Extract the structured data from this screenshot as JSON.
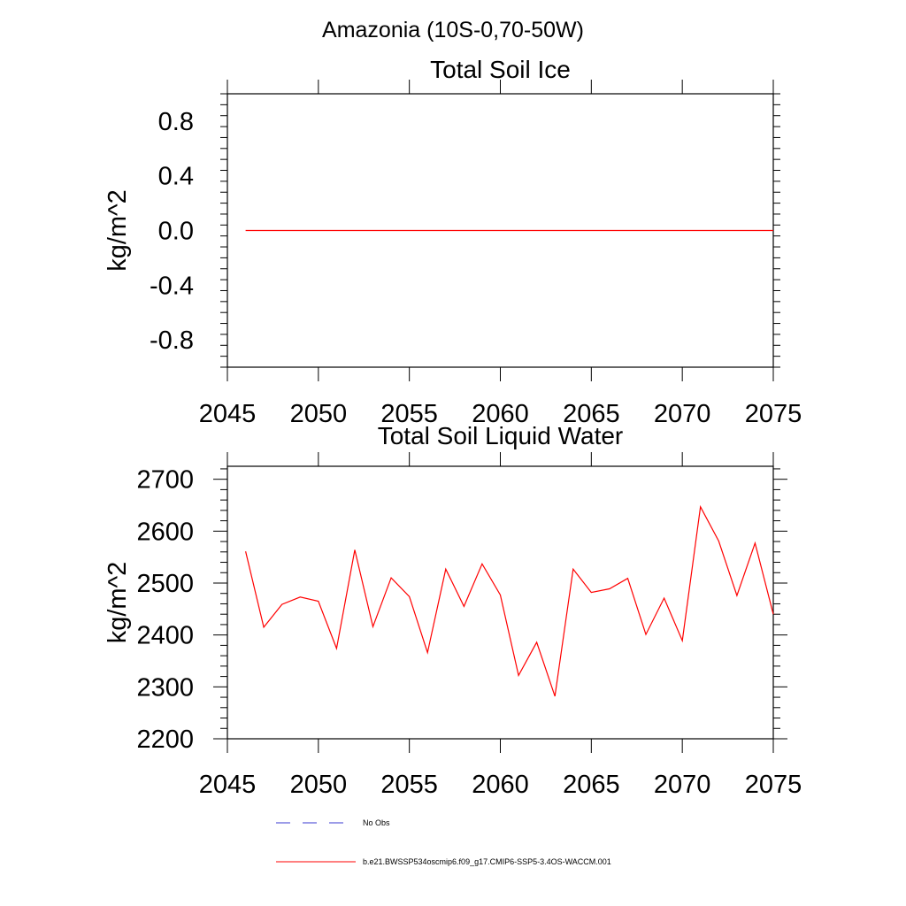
{
  "page_title": "Amazonia (10S-0,70-50W)",
  "colors": {
    "model_line": "#ff0000",
    "obs_line": "#3a3ad0"
  },
  "legend": {
    "obs_label": "No Obs",
    "model_label": "b.e21.BWSSP534oscmip6.f09_g17.CMIP6-SSP5-3.4OS-WACCM.001"
  },
  "chart_data": [
    {
      "type": "line",
      "title": "Total Soil Ice",
      "xlabel": "",
      "ylabel": "kg/m^2",
      "xlim": [
        2045,
        2075
      ],
      "ylim": [
        -1.0,
        1.0
      ],
      "xticks": [
        2045,
        2050,
        2055,
        2060,
        2065,
        2070,
        2075
      ],
      "yticks": [
        -0.8,
        -0.4,
        0.0,
        0.4,
        0.8
      ],
      "ytick_labels": [
        "-0.8",
        "-0.4",
        "0.0",
        "0.4",
        "0.8"
      ],
      "grid": false,
      "series": [
        {
          "name": "b.e21.BWSSP534oscmip6.f09_g17.CMIP6-SSP5-3.4OS-WACCM.001",
          "x": [
            2046,
            2047,
            2048,
            2049,
            2050,
            2051,
            2052,
            2053,
            2054,
            2055,
            2056,
            2057,
            2058,
            2059,
            2060,
            2061,
            2062,
            2063,
            2064,
            2065,
            2066,
            2067,
            2068,
            2069,
            2070,
            2071,
            2072,
            2073,
            2074,
            2075
          ],
          "values": [
            0,
            0,
            0,
            0,
            0,
            0,
            0,
            0,
            0,
            0,
            0,
            0,
            0,
            0,
            0,
            0,
            0,
            0,
            0,
            0,
            0,
            0,
            0,
            0,
            0,
            0,
            0,
            0,
            0,
            0
          ]
        }
      ]
    },
    {
      "type": "line",
      "title": "Total Soil Liquid Water",
      "xlabel": "",
      "ylabel": "kg/m^2",
      "xlim": [
        2045,
        2075
      ],
      "ylim": [
        2200,
        2725
      ],
      "xticks": [
        2045,
        2050,
        2055,
        2060,
        2065,
        2070,
        2075
      ],
      "yticks": [
        2200,
        2300,
        2400,
        2500,
        2600,
        2700
      ],
      "ytick_labels": [
        "2200",
        "2300",
        "2400",
        "2500",
        "2600",
        "2700"
      ],
      "grid": false,
      "series": [
        {
          "name": "b.e21.BWSSP534oscmip6.f09_g17.CMIP6-SSP5-3.4OS-WACCM.001",
          "x": [
            2046,
            2047,
            2048,
            2049,
            2050,
            2051,
            2052,
            2053,
            2054,
            2055,
            2056,
            2057,
            2058,
            2059,
            2060,
            2061,
            2062,
            2063,
            2064,
            2065,
            2066,
            2067,
            2068,
            2069,
            2070,
            2071,
            2072,
            2073,
            2074,
            2075
          ],
          "values": [
            2561,
            2415,
            2459,
            2473,
            2465,
            2374,
            2564,
            2416,
            2510,
            2474,
            2366,
            2527,
            2455,
            2537,
            2477,
            2322,
            2386,
            2282,
            2527,
            2482,
            2489,
            2509,
            2401,
            2471,
            2389,
            2647,
            2581,
            2476,
            2577,
            2440
          ]
        }
      ]
    }
  ]
}
